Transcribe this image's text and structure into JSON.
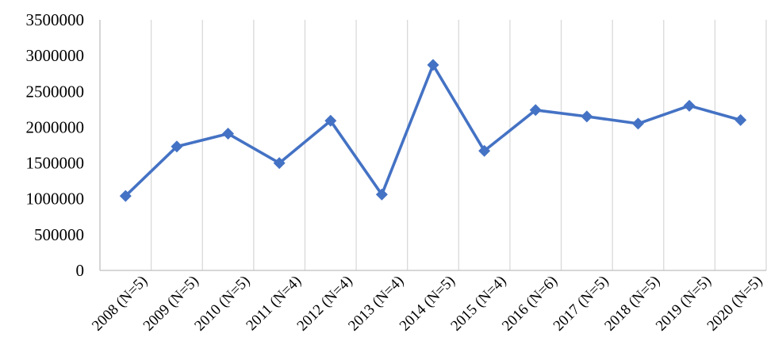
{
  "chart_data": {
    "type": "line",
    "categories": [
      "2008 (N=5)",
      "2009 (N=5)",
      "2010 (N=5)",
      "2011 (N=4)",
      "2012 (N=4)",
      "2013 (N=4)",
      "2014 (N=5)",
      "2015 (N=4)",
      "2016 (N=6)",
      "2017 (N=5)",
      "2018 (N=5)",
      "2019 (N=5)",
      "2020 (N=5)"
    ],
    "series": [
      {
        "values": [
          1040000,
          1730000,
          1910000,
          1500000,
          2090000,
          1060000,
          2870000,
          1670000,
          2240000,
          2150000,
          2050000,
          2300000,
          2100000
        ],
        "color": "#4472C4",
        "marker": "diamond"
      }
    ],
    "y_ticks": [
      "0",
      "500000",
      "1000000",
      "1500000",
      "2000000",
      "2500000",
      "3000000",
      "3500000"
    ],
    "ylim": [
      0,
      3500000
    ],
    "title": "",
    "xlabel": "",
    "ylabel": "",
    "grid": "vertical",
    "gridline_color": "#d9d9d9",
    "axis_color": "#bfbfbf"
  }
}
